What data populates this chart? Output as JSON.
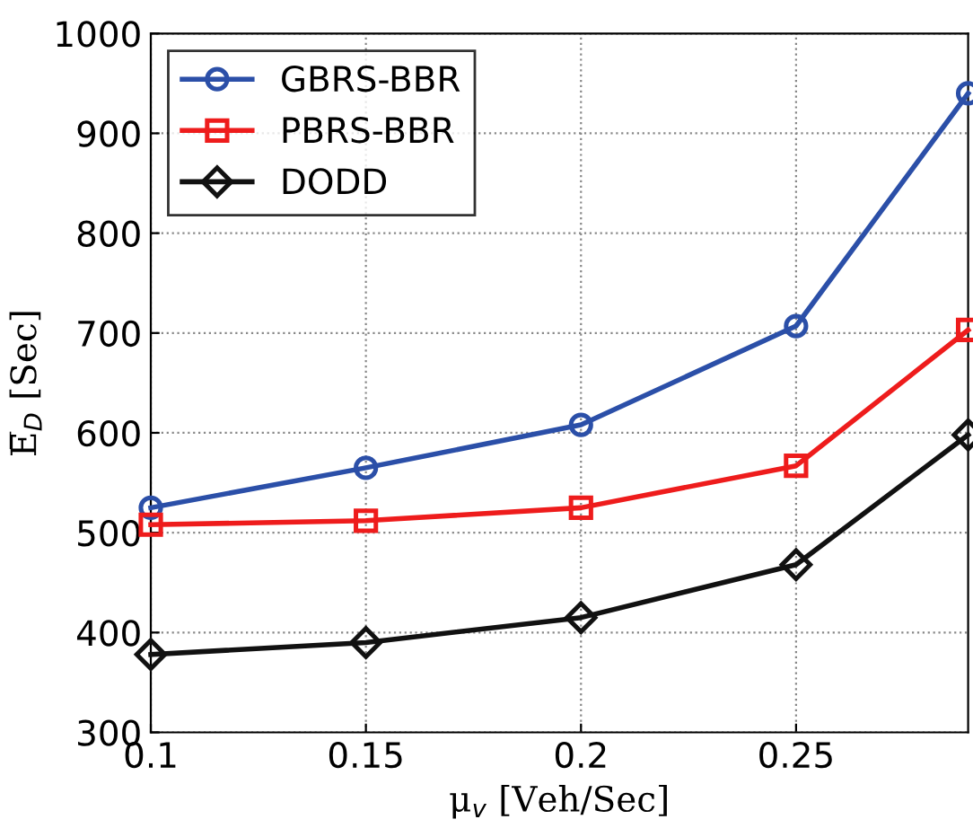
{
  "chart_data": {
    "type": "line",
    "xlabel": "μ$_{v}$ [Veh/Sec]",
    "ylabel": "E̅$_{D}$ [Sec]",
    "x": [
      0.1,
      0.15,
      0.2,
      0.25,
      0.29
    ],
    "series": [
      {
        "name": "GBRS-BBR",
        "color": "#2b4fa8",
        "marker": "circle",
        "values": [
          525,
          565,
          608,
          707,
          940
        ]
      },
      {
        "name": "PBRS-BBR",
        "color": "#ee1c1c",
        "marker": "square",
        "values": [
          508,
          512,
          525,
          567,
          703
        ]
      },
      {
        "name": "DODD",
        "color": "#111111",
        "marker": "diamond",
        "values": [
          378,
          390,
          415,
          468,
          598
        ]
      }
    ],
    "xlim": [
      0.1,
      0.29
    ],
    "xticks": [
      0.1,
      0.15,
      0.2,
      0.25
    ],
    "ylim": [
      300,
      1000
    ],
    "yticks": [
      300,
      400,
      500,
      600,
      700,
      800,
      900,
      1000
    ],
    "grid": true,
    "legend": "top left",
    "line_style": "solid"
  }
}
